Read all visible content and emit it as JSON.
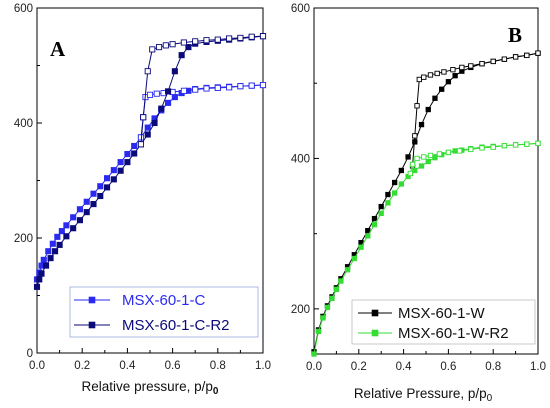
{
  "chart_data": [
    {
      "type": "line",
      "panel_label": "A",
      "xlabel_main": "Relative pressure, p/p",
      "xlabel_sub": "0",
      "ylabel": "",
      "xlim": [
        0,
        1
      ],
      "ylim": [
        0,
        600
      ],
      "xticks": [
        "0.0",
        "0.2",
        "0.4",
        "0.6",
        "0.8",
        "1.0"
      ],
      "yticks": [
        "0",
        "200",
        "400",
        "600"
      ],
      "legend_position": "bottom-right",
      "series": [
        {
          "name": "MSX-60-1-C",
          "color": "#2a2af0",
          "adsorption": {
            "x": [
              0,
              0.01,
              0.02,
              0.03,
              0.05,
              0.07,
              0.09,
              0.11,
              0.13,
              0.16,
              0.19,
              0.22,
              0.25,
              0.28,
              0.31,
              0.34,
              0.37,
              0.4,
              0.43,
              0.46,
              0.49,
              0.52,
              0.55,
              0.58,
              0.61,
              0.64,
              0.67,
              0.7,
              0.75,
              0.8,
              0.85,
              0.9,
              0.95,
              1.0
            ],
            "y": [
              128,
              140,
              152,
              162,
              177,
              190,
              202,
              212,
              222,
              236,
              250,
              263,
              277,
              290,
              304,
              318,
              332,
              346,
              360,
              375,
              392,
              408,
              422,
              435,
              445,
              452,
              456,
              459,
              461,
              462,
              463,
              464,
              465,
              466
            ]
          },
          "desorption": {
            "x": [
              0.46,
              0.47,
              0.48,
              0.5,
              0.53,
              0.56,
              0.6,
              0.65,
              0.7,
              0.75,
              0.8,
              0.85,
              0.9,
              0.95,
              1.0
            ],
            "y": [
              375,
              410,
              445,
              449,
              451,
              452,
              454,
              456,
              458,
              460,
              461,
              462,
              464,
              465,
              466
            ]
          }
        },
        {
          "name": "MSX-60-1-C-R2",
          "color": "#0a0a78",
          "adsorption": {
            "x": [
              0,
              0.01,
              0.02,
              0.04,
              0.06,
              0.08,
              0.1,
              0.13,
              0.16,
              0.19,
              0.22,
              0.25,
              0.28,
              0.31,
              0.34,
              0.37,
              0.4,
              0.43,
              0.46,
              0.49,
              0.52,
              0.55,
              0.58,
              0.61,
              0.64,
              0.67,
              0.7,
              0.75,
              0.8,
              0.85,
              0.9,
              0.95,
              1.0
            ],
            "y": [
              115,
              128,
              138,
              152,
              165,
              177,
              188,
              203,
              217,
              231,
              245,
              259,
              273,
              288,
              302,
              317,
              332,
              347,
              363,
              380,
              400,
              425,
              455,
              490,
              518,
              532,
              538,
              541,
              543,
              545,
              547,
              549,
              551
            ]
          },
          "desorption": {
            "x": [
              0.46,
              0.47,
              0.49,
              0.51,
              0.54,
              0.57,
              0.6,
              0.65,
              0.7,
              0.75,
              0.8,
              0.85,
              0.9,
              0.95,
              1.0
            ],
            "y": [
              363,
              410,
              490,
              528,
              532,
              535,
              537,
              540,
              542,
              544,
              545,
              547,
              548,
              550,
              551
            ]
          }
        }
      ]
    },
    {
      "type": "line",
      "panel_label": "B",
      "xlabel_main": "Relative Pressure, p/p",
      "xlabel_sub": "0",
      "ylabel": "",
      "xlim": [
        0,
        1
      ],
      "ylim": [
        140,
        600
      ],
      "xticks": [
        "0.0",
        "0.2",
        "0.4",
        "0.6",
        "0.8",
        "1.0"
      ],
      "yticks": [
        "200",
        "400",
        "600"
      ],
      "legend_position": "bottom-right",
      "series": [
        {
          "name": "MSX-60-1-W",
          "color": "#000000",
          "adsorption": {
            "x": [
              0,
              0.02,
              0.04,
              0.06,
              0.08,
              0.1,
              0.12,
              0.15,
              0.18,
              0.21,
              0.24,
              0.27,
              0.3,
              0.33,
              0.36,
              0.39,
              0.42,
              0.45,
              0.48,
              0.51,
              0.54,
              0.57,
              0.6,
              0.63,
              0.66,
              0.7,
              0.75,
              0.8,
              0.85,
              0.9,
              0.95,
              1.0
            ],
            "y": [
              143,
              172,
              190,
              204,
              216,
              228,
              240,
              256,
              272,
              288,
              304,
              320,
              336,
              352,
              368,
              384,
              402,
              422,
              445,
              465,
              480,
              492,
              502,
              510,
              516,
              521,
              526,
              529,
              532,
              535,
              537,
              540
            ]
          },
          "desorption": {
            "x": [
              0.44,
              0.45,
              0.46,
              0.47,
              0.49,
              0.52,
              0.55,
              0.58,
              0.62,
              0.66,
              0.7,
              0.75,
              0.8,
              0.85,
              0.9,
              0.95,
              1.0
            ],
            "y": [
              390,
              430,
              470,
              505,
              508,
              511,
              513,
              515,
              518,
              521,
              523,
              526,
              529,
              532,
              535,
              537,
              540
            ]
          }
        },
        {
          "name": "MSX-60-1-W-R2",
          "color": "#33dd33",
          "adsorption": {
            "x": [
              0,
              0.02,
              0.04,
              0.06,
              0.08,
              0.1,
              0.12,
              0.15,
              0.18,
              0.21,
              0.24,
              0.27,
              0.3,
              0.33,
              0.36,
              0.39,
              0.42,
              0.45,
              0.48,
              0.51,
              0.54,
              0.57,
              0.6,
              0.63,
              0.66,
              0.7,
              0.75,
              0.8,
              0.85,
              0.9,
              0.95,
              1.0
            ],
            "y": [
              140,
              170,
              188,
              202,
              214,
              226,
              237,
              252,
              267,
              282,
              297,
              312,
              327,
              341,
              354,
              366,
              376,
              384,
              390,
              396,
              401,
              405,
              408,
              410,
              411,
              413,
              415,
              416,
              417,
              418,
              419,
              420
            ]
          },
          "desorption": {
            "x": [
              0.43,
              0.44,
              0.46,
              0.49,
              0.52,
              0.56,
              0.6,
              0.65,
              0.7,
              0.75,
              0.8,
              0.85,
              0.9,
              0.95,
              1.0
            ],
            "y": [
              380,
              392,
              400,
              402,
              404,
              406,
              408,
              410,
              412,
              414,
              415,
              417,
              418,
              419,
              420
            ]
          }
        }
      ]
    }
  ]
}
